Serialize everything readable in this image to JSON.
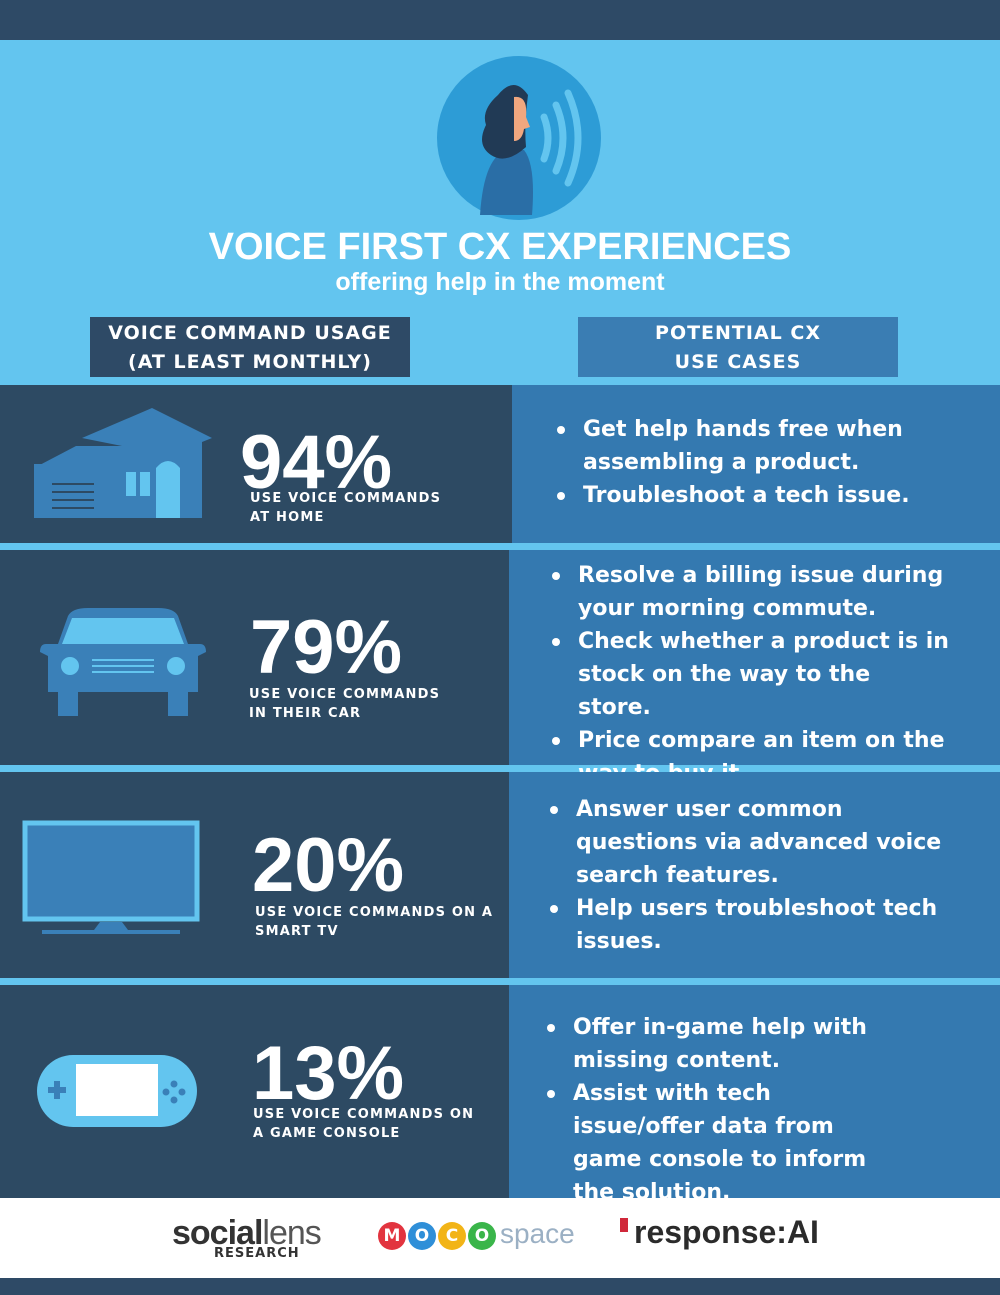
{
  "header": {
    "title": "VOICE FIRST CX EXPERIENCES",
    "subtitle": "offering help in the moment"
  },
  "columns": {
    "left": [
      "VOICE COMMAND USAGE",
      "(AT LEAST MONTHLY)"
    ],
    "right": [
      "POTENTIAL CX",
      "USE CASES"
    ]
  },
  "rows": [
    {
      "percent": "94%",
      "caption": [
        "USE VOICE COMMANDS",
        "AT HOME"
      ],
      "use_cases": [
        "Get help hands free when assembling a product.",
        "Troubleshoot a tech issue."
      ]
    },
    {
      "percent": "79%",
      "caption": [
        "USE VOICE COMMANDS",
        "IN THEIR CAR"
      ],
      "use_cases": [
        "Resolve a billing issue during your morning commute.",
        "Check whether a product is in stock on the way to the store.",
        "Price compare an item on the way to buy it."
      ]
    },
    {
      "percent": "20%",
      "caption": [
        "USE VOICE COMMANDS ON A",
        "SMART TV"
      ],
      "use_cases": [
        "Answer user common questions via advanced voice search features.",
        "Help users troubleshoot tech issues."
      ]
    },
    {
      "percent": "13%",
      "caption": [
        "USE VOICE COMMANDS ON",
        "A GAME CONSOLE"
      ],
      "use_cases": [
        "Offer in-game help with missing content.",
        "Assist with tech issue/offer data from game console to inform the solution."
      ]
    }
  ],
  "logos": {
    "social": "social",
    "lens": "lens",
    "research": "RESEARCH",
    "moco": [
      "M",
      "O",
      "C",
      "O"
    ],
    "space": "space",
    "response": "response:AI"
  }
}
